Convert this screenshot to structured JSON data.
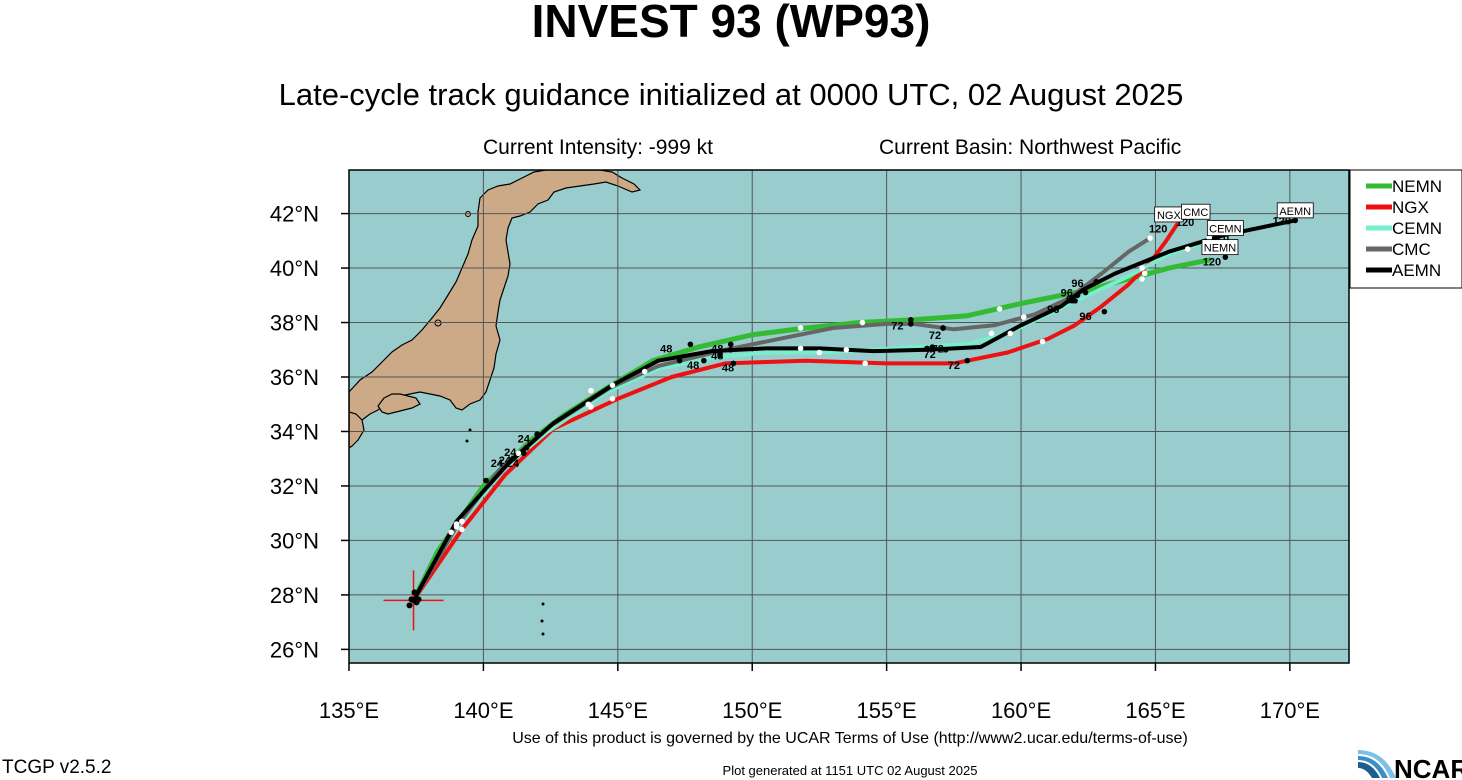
{
  "header": {
    "title": "INVEST 93 (WP93)",
    "subtitle": "Late-cycle track guidance initialized at 0000 UTC, 02 August 2025",
    "current_intensity": "Current Intensity: -999 kt",
    "current_basin": "Current Basin: Northwest Pacific"
  },
  "footer": {
    "terms": "Use of this product is governed by the UCAR Terms of Use (http://www2.ucar.edu/terms-of-use)",
    "version": "TCGP v2.5.2",
    "generated": "Plot generated at 1151 UTC   02 August 2025",
    "logo_text": "NCAR"
  },
  "colors": {
    "ocean": "#99cccc",
    "land": "#ccaa88",
    "grid": "#555555"
  },
  "map": {
    "lon_range": [
      135,
      172.2
    ],
    "lat_range": [
      25.5,
      43.6
    ],
    "lon_ticks": [
      135,
      140,
      145,
      150,
      155,
      160,
      165,
      170
    ],
    "lat_ticks": [
      26,
      28,
      30,
      32,
      34,
      36,
      38,
      40,
      42
    ],
    "lon_labels": [
      "135°E",
      "140°E",
      "145°E",
      "150°E",
      "155°E",
      "160°E",
      "165°E",
      "170°E"
    ],
    "lat_labels": [
      "26°N",
      "28°N",
      "30°N",
      "32°N",
      "34°N",
      "36°N",
      "38°N",
      "40°N",
      "42°N"
    ],
    "current_position": {
      "lon": 137.4,
      "lat": 27.8
    }
  },
  "legend": [
    {
      "name": "NEMN",
      "color": "#33bb33"
    },
    {
      "name": "NGX",
      "color": "#ee1111"
    },
    {
      "name": "CEMN",
      "color": "#77eecc"
    },
    {
      "name": "CMC",
      "color": "#666666"
    },
    {
      "name": "AEMN",
      "color": "#000000"
    }
  ],
  "tracks": [
    {
      "name": "NEMN",
      "color": "#33bb33",
      "width": 5,
      "points": [
        [
          137.4,
          27.8
        ],
        [
          138.3,
          29.6
        ],
        [
          140.0,
          32.0
        ],
        [
          141.8,
          33.7
        ],
        [
          143.0,
          34.6
        ],
        [
          144.6,
          35.6
        ],
        [
          146.3,
          36.6
        ],
        [
          148.0,
          37.1
        ],
        [
          150.0,
          37.55
        ],
        [
          152.0,
          37.8
        ],
        [
          154.0,
          38.0
        ],
        [
          156.0,
          38.1
        ],
        [
          158.0,
          38.25
        ],
        [
          160.0,
          38.7
        ],
        [
          161.5,
          39.0
        ],
        [
          162.5,
          39.2
        ],
        [
          164.0,
          39.6
        ],
        [
          165.5,
          40.0
        ],
        [
          167.0,
          40.3
        ]
      ],
      "dots": [
        [
          [
            139.0,
            30.6
          ],
          "white"
        ],
        [
          [
            140.1,
            32.2
          ],
          "black"
        ],
        [
          [
            142.0,
            33.9
          ],
          "black"
        ],
        [
          [
            144.0,
            35.5
          ],
          "white"
        ],
        [
          [
            147.7,
            37.2
          ],
          "black"
        ],
        [
          [
            149.2,
            37.2
          ],
          "black"
        ],
        [
          [
            151.8,
            37.8
          ],
          "white"
        ],
        [
          [
            154.1,
            38.0
          ],
          "white"
        ],
        [
          [
            155.9,
            38.1
          ],
          "black"
        ],
        [
          [
            157.1,
            37.8
          ],
          "black"
        ],
        [
          [
            159.2,
            38.5
          ],
          "white"
        ],
        [
          [
            160.1,
            38.2
          ],
          "white"
        ],
        [
          [
            162.4,
            39.1
          ],
          "black"
        ],
        [
          [
            164.6,
            39.8
          ],
          "white"
        ],
        [
          [
            167.6,
            40.4
          ],
          "black"
        ]
      ]
    },
    {
      "name": "NGX",
      "color": "#ee1111",
      "width": 4,
      "points": [
        [
          137.4,
          27.8
        ],
        [
          139.2,
          30.4
        ],
        [
          140.8,
          32.4
        ],
        [
          142.6,
          34.1
        ],
        [
          145.0,
          35.2
        ],
        [
          147.0,
          36.0
        ],
        [
          149.0,
          36.5
        ],
        [
          152.0,
          36.6
        ],
        [
          155.0,
          36.5
        ],
        [
          157.5,
          36.5
        ],
        [
          159.5,
          36.9
        ],
        [
          161.0,
          37.4
        ],
        [
          162.0,
          37.9
        ],
        [
          163.0,
          38.6
        ],
        [
          164.0,
          39.4
        ],
        [
          164.8,
          40.2
        ],
        [
          165.4,
          41.0
        ],
        [
          165.8,
          41.6
        ]
      ],
      "dots": [
        [
          [
            139.2,
            30.4
          ],
          "white"
        ],
        [
          [
            141.5,
            33.2
          ],
          "black"
        ],
        [
          [
            144.0,
            34.9
          ],
          "white"
        ],
        [
          [
            144.8,
            35.2
          ],
          "white"
        ],
        [
          [
            148.2,
            36.6
          ],
          "black"
        ],
        [
          [
            149.3,
            36.5
          ],
          "black"
        ],
        [
          [
            154.2,
            36.5
          ],
          "white"
        ],
        [
          [
            158.0,
            36.6
          ],
          "black"
        ],
        [
          [
            160.8,
            37.3
          ],
          "white"
        ],
        [
          [
            163.1,
            38.4
          ],
          "black"
        ],
        [
          [
            164.5,
            39.6
          ],
          "white"
        ]
      ]
    },
    {
      "name": "CEMN",
      "color": "#77eecc",
      "width": 4,
      "points": [
        [
          137.4,
          27.8
        ],
        [
          138.8,
          30.2
        ],
        [
          140.7,
          32.6
        ],
        [
          142.4,
          34.0
        ],
        [
          144.5,
          35.4
        ],
        [
          146.5,
          36.3
        ],
        [
          148.5,
          36.7
        ],
        [
          150.5,
          36.9
        ],
        [
          152.5,
          36.9
        ],
        [
          154.5,
          37.0
        ],
        [
          156.0,
          37.1
        ],
        [
          158.0,
          37.2
        ],
        [
          159.5,
          37.6
        ],
        [
          161.0,
          38.3
        ],
        [
          162.5,
          39.0
        ],
        [
          164.0,
          39.7
        ],
        [
          165.5,
          40.5
        ],
        [
          167.0,
          41.0
        ]
      ],
      "dots": [
        [
          [
            138.8,
            30.3
          ],
          "white"
        ],
        [
          [
            141.3,
            33.2
          ],
          "white"
        ],
        [
          [
            146.0,
            36.2
          ],
          "white"
        ],
        [
          [
            148.8,
            36.8
          ],
          "black"
        ],
        [
          [
            152.5,
            36.9
          ],
          "white"
        ],
        [
          [
            153.5,
            37.0
          ],
          "white"
        ],
        [
          [
            156.7,
            37.1
          ],
          "black"
        ],
        [
          [
            158.9,
            37.6
          ],
          "white"
        ],
        [
          [
            159.6,
            37.6
          ],
          "white"
        ],
        [
          [
            161.9,
            38.8
          ],
          "black"
        ],
        [
          [
            166.2,
            40.7
          ],
          "white"
        ]
      ]
    },
    {
      "name": "CMC",
      "color": "#666666",
      "width": 4,
      "points": [
        [
          137.4,
          27.8
        ],
        [
          139.0,
          30.5
        ],
        [
          140.6,
          32.6
        ],
        [
          142.5,
          34.2
        ],
        [
          144.7,
          35.6
        ],
        [
          146.5,
          36.4
        ],
        [
          149.0,
          37.0
        ],
        [
          151.0,
          37.4
        ],
        [
          153.0,
          37.8
        ],
        [
          155.0,
          37.95
        ],
        [
          156.0,
          37.95
        ],
        [
          157.5,
          37.75
        ],
        [
          159.0,
          37.9
        ],
        [
          160.5,
          38.3
        ],
        [
          161.8,
          38.9
        ],
        [
          163.0,
          39.8
        ],
        [
          164.0,
          40.6
        ],
        [
          164.8,
          41.1
        ]
      ],
      "dots": [
        [
          [
            139.0,
            30.5
          ],
          "white"
        ],
        [
          [
            141.6,
            33.4
          ],
          "black"
        ],
        [
          [
            143.9,
            35.0
          ],
          "white"
        ],
        [
          [
            147.3,
            36.6
          ],
          "black"
        ],
        [
          [
            149.2,
            37.0
          ],
          "black"
        ],
        [
          [
            155.9,
            37.95
          ],
          "black"
        ],
        [
          [
            157.1,
            37.8
          ],
          "black"
        ],
        [
          [
            162.0,
            38.8
          ],
          "black"
        ],
        [
          [
            162.8,
            39.5
          ],
          "black"
        ],
        [
          [
            164.8,
            41.1
          ],
          "white"
        ]
      ]
    },
    {
      "name": "AEMN",
      "color": "#000000",
      "width": 4,
      "points": [
        [
          137.4,
          27.8
        ],
        [
          139.0,
          30.7
        ],
        [
          140.9,
          32.8
        ],
        [
          142.6,
          34.3
        ],
        [
          144.8,
          35.7
        ],
        [
          146.5,
          36.6
        ],
        [
          148.5,
          36.95
        ],
        [
          150.5,
          37.05
        ],
        [
          152.5,
          37.05
        ],
        [
          154.5,
          36.95
        ],
        [
          156.5,
          37.0
        ],
        [
          158.5,
          37.1
        ],
        [
          160.0,
          37.9
        ],
        [
          161.5,
          38.6
        ],
        [
          162.3,
          39.2
        ],
        [
          163.5,
          39.8
        ],
        [
          165.5,
          40.6
        ],
        [
          167.5,
          41.2
        ],
        [
          170.2,
          41.75
        ]
      ],
      "dots": [
        [
          [
            139.2,
            30.7
          ],
          "white"
        ],
        [
          [
            141.1,
            33.0
          ],
          "black"
        ],
        [
          [
            144.8,
            35.7
          ],
          "white"
        ],
        [
          [
            148.8,
            36.9
          ],
          "black"
        ],
        [
          [
            151.8,
            37.05
          ],
          "white"
        ],
        [
          [
            156.5,
            37.05
          ],
          "black"
        ],
        [
          [
            157.2,
            37.0
          ],
          "black"
        ],
        [
          [
            162.1,
            39.0
          ],
          "black"
        ],
        [
          [
            164.5,
            40.0
          ],
          "white"
        ],
        [
          [
            167.0,
            41.1
          ],
          "white"
        ],
        [
          [
            170.2,
            41.75
          ],
          "black"
        ]
      ]
    }
  ],
  "hour_labels": [
    {
      "text": "24",
      "lon": 141.5,
      "lat": 33.6
    },
    {
      "text": "24",
      "lon": 141.0,
      "lat": 33.1
    },
    {
      "text": "24",
      "lon": 140.8,
      "lat": 32.8
    },
    {
      "text": "24",
      "lon": 140.5,
      "lat": 32.7
    },
    {
      "text": "24",
      "lon": 141.1,
      "lat": 32.7
    },
    {
      "text": "48",
      "lon": 146.8,
      "lat": 36.9
    },
    {
      "text": "48",
      "lon": 148.7,
      "lat": 36.9
    },
    {
      "text": "48",
      "lon": 148.7,
      "lat": 36.65
    },
    {
      "text": "48",
      "lon": 147.8,
      "lat": 36.3
    },
    {
      "text": "48",
      "lon": 149.1,
      "lat": 36.2
    },
    {
      "text": "72",
      "lon": 155.4,
      "lat": 37.75
    },
    {
      "text": "72",
      "lon": 156.8,
      "lat": 37.4
    },
    {
      "text": "72",
      "lon": 156.9,
      "lat": 36.9
    },
    {
      "text": "72",
      "lon": 156.6,
      "lat": 36.7
    },
    {
      "text": "72",
      "lon": 157.5,
      "lat": 36.3
    },
    {
      "text": "96",
      "lon": 162.1,
      "lat": 39.3
    },
    {
      "text": "96",
      "lon": 161.7,
      "lat": 38.95
    },
    {
      "text": "96",
      "lon": 161.9,
      "lat": 38.7
    },
    {
      "text": "96",
      "lon": 161.2,
      "lat": 38.35
    },
    {
      "text": "96",
      "lon": 162.4,
      "lat": 38.1
    },
    {
      "text": "120",
      "lon": 165.1,
      "lat": 41.3
    },
    {
      "text": "120",
      "lon": 166.1,
      "lat": 41.55
    },
    {
      "text": "120",
      "lon": 167.4,
      "lat": 41.0
    },
    {
      "text": "120",
      "lon": 167.1,
      "lat": 40.1
    },
    {
      "text": "120",
      "lon": 169.7,
      "lat": 41.6
    }
  ],
  "end_labels": [
    {
      "text": "NGX",
      "lon": 165.5,
      "lat": 41.95
    },
    {
      "text": "CMC",
      "lon": 166.5,
      "lat": 42.05
    },
    {
      "text": "CEMN",
      "lon": 167.6,
      "lat": 41.45
    },
    {
      "text": "NEMN",
      "lon": 167.4,
      "lat": 40.75
    },
    {
      "text": "AEMN",
      "lon": 170.2,
      "lat": 42.1
    }
  ]
}
